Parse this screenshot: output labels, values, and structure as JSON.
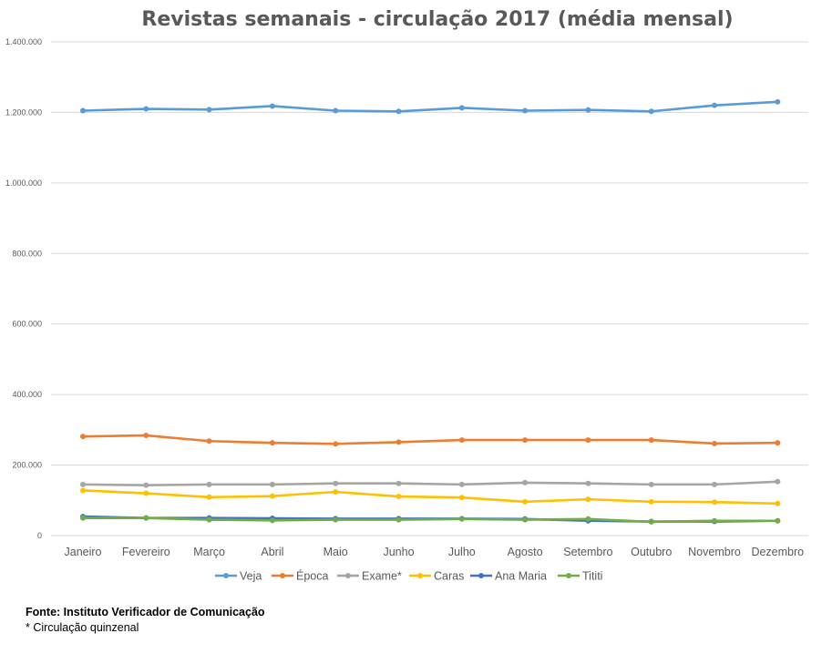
{
  "chart_data": {
    "type": "line",
    "title": "Revistas semanais - circulação 2017 (média mensal)",
    "xlabel": "",
    "ylabel": "",
    "categories": [
      "Janeiro",
      "Fevereiro",
      "Março",
      "Abril",
      "Maio",
      "Junho",
      "Julho",
      "Agosto",
      "Setembro",
      "Outubro",
      "Novembro",
      "Dezembro"
    ],
    "ylim": [
      0,
      1400000
    ],
    "yticks": [
      0,
      200000,
      400000,
      600000,
      800000,
      1000000,
      1200000,
      1400000
    ],
    "ytick_labels": [
      "0",
      "200.000",
      "400.000",
      "600.000",
      "800.000",
      "1.000.000",
      "1.200.000",
      "1.400.000"
    ],
    "grid": "horizontal",
    "legend": "bottom",
    "series": [
      {
        "name": "Veja",
        "color": "#5b9bd5",
        "values": [
          1205000,
          1210000,
          1208000,
          1218000,
          1205000,
          1203000,
          1213000,
          1205000,
          1207000,
          1203000,
          1220000,
          1230000
        ]
      },
      {
        "name": "Época",
        "color": "#ed7d31",
        "values": [
          281000,
          284000,
          268000,
          263000,
          260000,
          265000,
          271000,
          271000,
          271000,
          271000,
          261000,
          263000
        ]
      },
      {
        "name": "Exame*",
        "color": "#a5a5a5",
        "values": [
          145000,
          143000,
          145000,
          145000,
          148000,
          148000,
          145000,
          150000,
          148000,
          145000,
          145000,
          153000
        ]
      },
      {
        "name": "Caras",
        "color": "#ffc000",
        "values": [
          128000,
          120000,
          109000,
          112000,
          124000,
          111000,
          108000,
          96000,
          103000,
          96000,
          95000,
          91000
        ]
      },
      {
        "name": "Ana Maria",
        "color": "#4472c4",
        "values": [
          54000,
          50000,
          50000,
          49000,
          48000,
          48000,
          48000,
          47000,
          42000,
          40000,
          40000,
          42000
        ]
      },
      {
        "name": "Tititi",
        "color": "#70ad47",
        "values": [
          50000,
          50000,
          45000,
          43000,
          45000,
          45000,
          47000,
          45000,
          47000,
          39000,
          42000,
          42000
        ]
      }
    ]
  },
  "footer": {
    "source": "Fonte: Instituto Verificador de Comunicação",
    "note": "* Circulação quinzenal"
  }
}
